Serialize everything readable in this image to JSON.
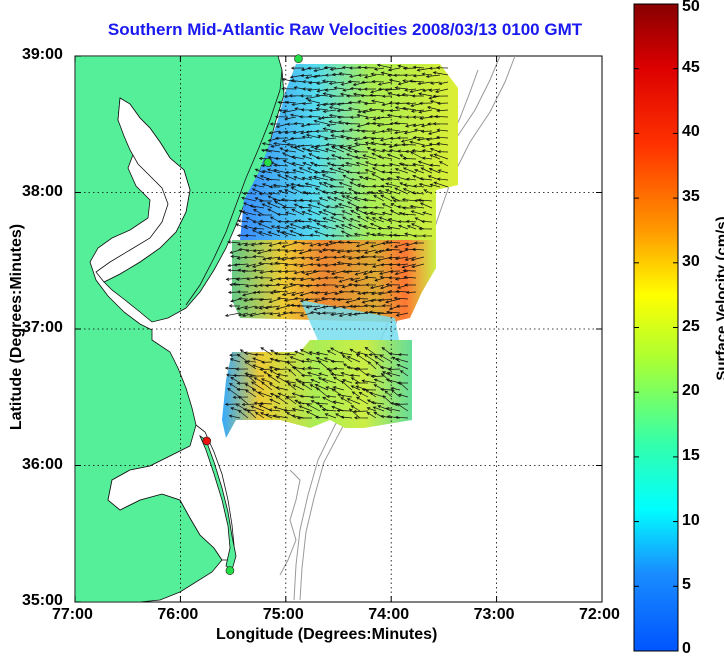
{
  "title": "Southern Mid-Atlantic Raw Velocities 2008/03/13 0100 GMT",
  "axes": {
    "xlabel": "Longitude (Degrees:Minutes)",
    "ylabel": "Latitude (Degrees:Minutes)",
    "x_ticks": [
      "77:00",
      "76:00",
      "75:00",
      "74:00",
      "73:00",
      "72:00"
    ],
    "y_ticks": [
      "39:00",
      "38:00",
      "37:00",
      "36:00",
      "35:00"
    ],
    "xlim_deg_west": [
      77,
      72
    ],
    "ylim_deg_north": [
      35,
      39
    ],
    "grid": "dotted"
  },
  "colorbar": {
    "label": "Surface Velocity (cm/s)",
    "ticks": [
      "0",
      "5",
      "10",
      "15",
      "20",
      "25",
      "30",
      "35",
      "40",
      "45",
      "50"
    ],
    "range": [
      0,
      50
    ],
    "colormap": "jet"
  },
  "colors": {
    "land": "#55ee99",
    "title": "#1a1af0",
    "station_green": "#22dd44",
    "station_red": "#ee1111",
    "bathymetry": "#999999"
  },
  "stations": [
    {
      "name": "station-north",
      "lon": -74.88,
      "lat": 38.98,
      "color": "green"
    },
    {
      "name": "station-mid",
      "lon": -75.17,
      "lat": 38.22,
      "color": "green"
    },
    {
      "name": "station-hatteras-north",
      "lon": -75.75,
      "lat": 36.18,
      "color": "red"
    },
    {
      "name": "station-south",
      "lon": -75.53,
      "lat": 35.23,
      "color": "green"
    }
  ]
}
